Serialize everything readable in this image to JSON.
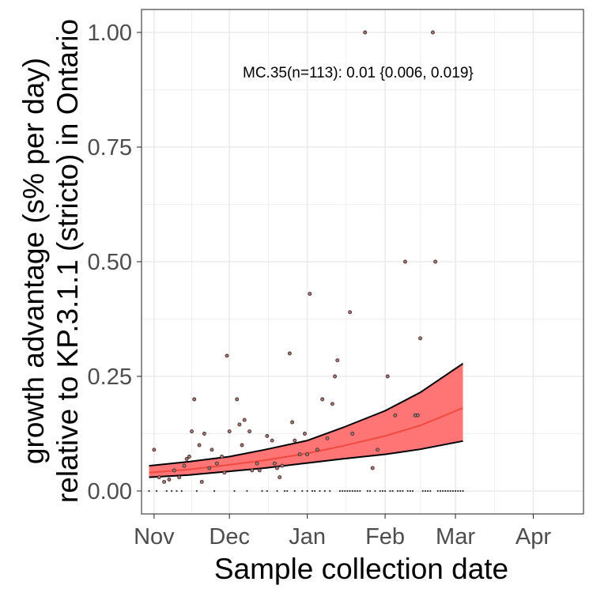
{
  "chart_data": {
    "type": "scatter",
    "xlabel": "Sample collection date",
    "ylabel_lines": [
      "growth advantage (s% per day)",
      "relative to KP.3.1.1 (stricto) in Ontario"
    ],
    "annotation": "MC.35(n=113): 0.01 {0.006, 0.019}",
    "x_axis": {
      "type": "date",
      "range": [
        "2024-10-27",
        "2025-04-21"
      ],
      "ticks": [
        {
          "label": "Nov",
          "date": "2024-11-01"
        },
        {
          "label": "Dec",
          "date": "2024-12-01"
        },
        {
          "label": "Jan",
          "date": "2025-01-01"
        },
        {
          "label": "Feb",
          "date": "2025-02-01"
        },
        {
          "label": "Mar",
          "date": "2025-03-01"
        },
        {
          "label": "Apr",
          "date": "2025-04-01"
        }
      ]
    },
    "y_axis": {
      "range": [
        -0.05,
        1.05
      ],
      "ticks": [
        {
          "label": "0.00",
          "value": 0
        },
        {
          "label": "0.25",
          "value": 0.25
        },
        {
          "label": "0.50",
          "value": 0.5
        },
        {
          "label": "0.75",
          "value": 0.75
        },
        {
          "label": "1.00",
          "value": 1.0
        }
      ]
    },
    "grid": true,
    "colors": {
      "fit_line": "#f04a3e",
      "ribbon": "#ff7575",
      "ribbon_edge": "#000000",
      "points": "#7a5a5a",
      "grid": "#ebebeb",
      "panel_border": "#333333"
    },
    "fit": {
      "dates": [
        "2024-10-30",
        "2024-11-15",
        "2024-12-01",
        "2024-12-15",
        "2025-01-01",
        "2025-01-15",
        "2025-02-01",
        "2025-02-15",
        "2025-03-04"
      ],
      "estimate": [
        0.04,
        0.047,
        0.057,
        0.067,
        0.082,
        0.098,
        0.12,
        0.143,
        0.181
      ],
      "lower": [
        0.03,
        0.035,
        0.043,
        0.05,
        0.061,
        0.07,
        0.08,
        0.091,
        0.109
      ],
      "upper": [
        0.055,
        0.064,
        0.075,
        0.09,
        0.11,
        0.138,
        0.175,
        0.215,
        0.278
      ]
    },
    "points": [
      {
        "date": "2024-11-01",
        "y": 0.09
      },
      {
        "date": "2024-11-03",
        "y": 0.03
      },
      {
        "date": "2024-11-05",
        "y": 0.02
      },
      {
        "date": "2024-11-07",
        "y": 0.025
      },
      {
        "date": "2024-11-09",
        "y": 0.045
      },
      {
        "date": "2024-11-11",
        "y": 0.03
      },
      {
        "date": "2024-11-13",
        "y": 0.055
      },
      {
        "date": "2024-11-14",
        "y": 0.07
      },
      {
        "date": "2024-11-15",
        "y": 0.075
      },
      {
        "date": "2024-11-16",
        "y": 0.13
      },
      {
        "date": "2024-11-17",
        "y": 0.2
      },
      {
        "date": "2024-11-19",
        "y": 0.1
      },
      {
        "date": "2024-11-20",
        "y": 0.02
      },
      {
        "date": "2024-11-21",
        "y": 0.125
      },
      {
        "date": "2024-11-23",
        "y": 0.05
      },
      {
        "date": "2024-11-24",
        "y": 0.09
      },
      {
        "date": "2024-11-26",
        "y": 0.06
      },
      {
        "date": "2024-11-28",
        "y": 0.075
      },
      {
        "date": "2024-11-29",
        "y": 0.04
      },
      {
        "date": "2024-11-30",
        "y": 0.295
      },
      {
        "date": "2024-12-01",
        "y": 0.13
      },
      {
        "date": "2024-12-04",
        "y": 0.2
      },
      {
        "date": "2024-12-05",
        "y": 0.145
      },
      {
        "date": "2024-12-06",
        "y": 0.1
      },
      {
        "date": "2024-12-07",
        "y": 0.155
      },
      {
        "date": "2024-12-09",
        "y": 0.13
      },
      {
        "date": "2024-12-10",
        "y": 0.045
      },
      {
        "date": "2024-12-12",
        "y": 0.06
      },
      {
        "date": "2024-12-13",
        "y": 0.045
      },
      {
        "date": "2024-12-16",
        "y": 0.12
      },
      {
        "date": "2024-12-18",
        "y": 0.11
      },
      {
        "date": "2024-12-19",
        "y": 0.06
      },
      {
        "date": "2024-12-20",
        "y": 0.05
      },
      {
        "date": "2024-12-21",
        "y": 0.03
      },
      {
        "date": "2024-12-22",
        "y": 0.055
      },
      {
        "date": "2024-12-25",
        "y": 0.3
      },
      {
        "date": "2024-12-26",
        "y": 0.15
      },
      {
        "date": "2024-12-27",
        "y": 0.11
      },
      {
        "date": "2024-12-29",
        "y": 0.08
      },
      {
        "date": "2024-12-31",
        "y": 0.125
      },
      {
        "date": "2025-01-01",
        "y": 0.08
      },
      {
        "date": "2025-01-02",
        "y": 0.43
      },
      {
        "date": "2025-01-05",
        "y": 0.09
      },
      {
        "date": "2025-01-07",
        "y": 0.2
      },
      {
        "date": "2025-01-09",
        "y": 0.115
      },
      {
        "date": "2025-01-11",
        "y": 0.19
      },
      {
        "date": "2025-01-12",
        "y": 0.25
      },
      {
        "date": "2025-01-13",
        "y": 0.285
      },
      {
        "date": "2025-01-18",
        "y": 0.39
      },
      {
        "date": "2025-01-19",
        "y": 0.125
      },
      {
        "date": "2025-01-24",
        "y": 1.0
      },
      {
        "date": "2025-01-27",
        "y": 0.05
      },
      {
        "date": "2025-01-29",
        "y": 0.09
      },
      {
        "date": "2025-02-02",
        "y": 0.25
      },
      {
        "date": "2025-02-05",
        "y": 0.165
      },
      {
        "date": "2025-02-09",
        "y": 0.5
      },
      {
        "date": "2025-02-13",
        "y": 0.165
      },
      {
        "date": "2025-02-14",
        "y": 0.165
      },
      {
        "date": "2025-02-15",
        "y": 0.333
      },
      {
        "date": "2025-02-20",
        "y": 1.0
      },
      {
        "date": "2025-02-21",
        "y": 0.5
      }
    ],
    "zero_points": [
      "2024-10-30",
      "2024-11-02",
      "2024-11-06",
      "2024-11-08",
      "2024-11-10",
      "2024-11-12",
      "2024-11-18",
      "2024-11-25",
      "2024-12-03",
      "2024-12-08",
      "2024-12-14",
      "2024-12-16",
      "2024-12-20",
      "2024-12-23",
      "2024-12-24",
      "2024-12-27",
      "2024-12-30",
      "2025-01-01",
      "2025-01-03",
      "2025-01-04",
      "2025-01-06",
      "2025-01-08",
      "2025-01-10",
      "2025-01-14",
      "2025-01-15",
      "2025-01-16",
      "2025-01-17",
      "2025-01-18",
      "2025-01-19",
      "2025-01-20",
      "2025-01-21",
      "2025-01-22",
      "2025-01-25",
      "2025-01-26",
      "2025-01-28",
      "2025-01-30",
      "2025-01-31",
      "2025-02-01",
      "2025-02-03",
      "2025-02-04",
      "2025-02-06",
      "2025-02-07",
      "2025-02-08",
      "2025-02-10",
      "2025-02-11",
      "2025-02-12",
      "2025-02-16",
      "2025-02-17",
      "2025-02-18",
      "2025-02-19",
      "2025-02-22",
      "2025-02-23",
      "2025-02-24",
      "2025-02-25",
      "2025-02-26",
      "2025-02-27",
      "2025-02-28",
      "2025-03-01",
      "2025-03-02",
      "2025-03-03",
      "2025-03-04"
    ]
  }
}
